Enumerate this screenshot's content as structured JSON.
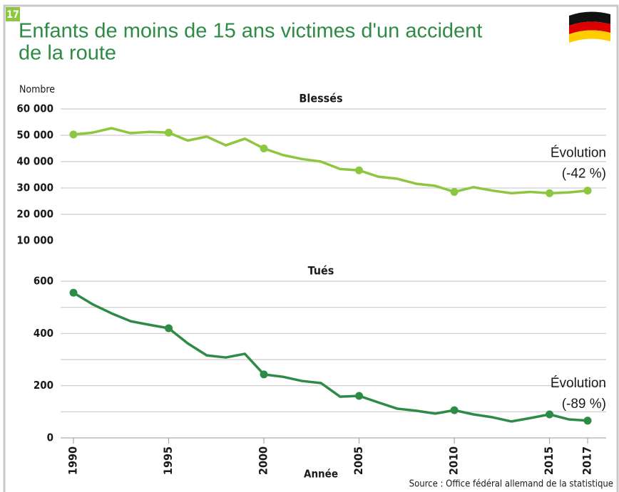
{
  "header": {
    "badge": "17",
    "title": [
      "Enfants de moins de 15 ans victimes d'un accident",
      "de la route"
    ]
  },
  "source": "Source : Office fédéral allemand de la statistique",
  "chart_data": [
    {
      "type": "line",
      "title": "Blessés",
      "ylabel": "Nombre",
      "color": "#8dc63f",
      "annotation": [
        "Évolution",
        "(-42 %)"
      ],
      "x": [
        1990,
        1991,
        1992,
        1993,
        1994,
        1995,
        1996,
        1997,
        1998,
        1999,
        2000,
        2001,
        2002,
        2003,
        2004,
        2005,
        2006,
        2007,
        2008,
        2009,
        2010,
        2011,
        2012,
        2013,
        2014,
        2015,
        2016,
        2017
      ],
      "values": [
        50300,
        51000,
        52700,
        50800,
        51300,
        51000,
        48000,
        49500,
        46200,
        48700,
        45000,
        42500,
        41000,
        40000,
        37200,
        36700,
        34300,
        33500,
        31600,
        30800,
        28500,
        30300,
        29000,
        28000,
        28500,
        28000,
        28300,
        29000
      ],
      "xlim": [
        1990,
        2017
      ],
      "ylim": [
        10000,
        60000
      ],
      "yticks": [
        {
          "value": 10000,
          "label": "10 000"
        },
        {
          "value": 20000,
          "label": "20 000"
        },
        {
          "value": 30000,
          "label": "30 000"
        },
        {
          "value": 40000,
          "label": "40 000"
        },
        {
          "value": 50000,
          "label": "50 000"
        },
        {
          "value": 60000,
          "label": "60 000"
        }
      ],
      "grid_yticks": [
        20000,
        30000,
        40000,
        50000,
        60000
      ],
      "markers": [
        1990,
        1995,
        2000,
        2005,
        2010,
        2015,
        2017
      ]
    },
    {
      "type": "line",
      "title": "Tués",
      "xlabel": "Année",
      "color": "#2e8b45",
      "annotation": [
        "Évolution",
        "(-89 %)"
      ],
      "x": [
        1990,
        1991,
        1992,
        1993,
        1994,
        1995,
        1996,
        1997,
        1998,
        1999,
        2000,
        2001,
        2002,
        2003,
        2004,
        2005,
        2006,
        2007,
        2008,
        2009,
        2010,
        2011,
        2012,
        2013,
        2014,
        2015,
        2016,
        2017
      ],
      "values": [
        556,
        512,
        477,
        447,
        433,
        420,
        362,
        316,
        308,
        322,
        243,
        234,
        218,
        210,
        158,
        161,
        136,
        112,
        104,
        93,
        106,
        90,
        79,
        63,
        76,
        90,
        71,
        66
      ],
      "xlim": [
        1990,
        2017
      ],
      "ylim": [
        0,
        600
      ],
      "xticks": [
        1990,
        1995,
        2000,
        2005,
        2010,
        2015,
        2017
      ],
      "yticks": [
        0,
        200,
        400,
        600
      ],
      "grid_yticks": [
        100,
        200,
        300,
        400,
        500,
        600
      ],
      "markers": [
        1990,
        1995,
        2000,
        2005,
        2010,
        2015,
        2017
      ]
    }
  ]
}
